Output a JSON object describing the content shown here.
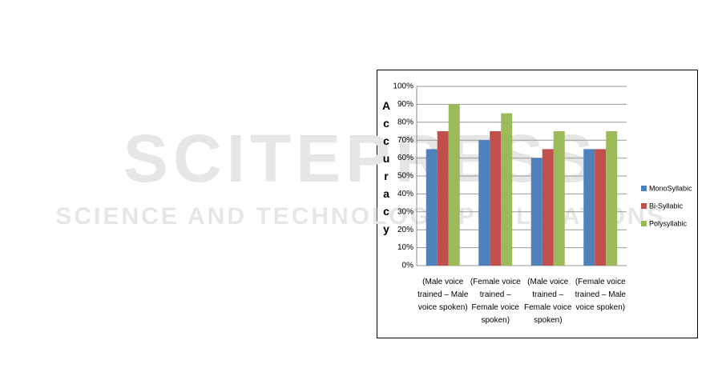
{
  "watermark": {
    "title": "SCITEPRESS",
    "subtitle": "SCIENCE AND TECHNOLOGY PUBLICATIONS"
  },
  "chart_data": {
    "type": "bar",
    "y_label": "Accuracy",
    "categories": [
      "(Male voice trained – Male voice spoken)",
      "(Female voice trained – Female voice spoken)",
      "(Male voice trained – Female voice spoken)",
      "(Female voice trained – Male voice spoken)"
    ],
    "series": [
      {
        "name": "MonoSyllabic",
        "color": "#4f81bd",
        "values": [
          65,
          70,
          60,
          65
        ]
      },
      {
        "name": "Bi-Syllabic",
        "color": "#c0504d",
        "values": [
          75,
          75,
          65,
          65
        ]
      },
      {
        "name": "Polysyllabic",
        "color": "#9bbb59",
        "values": [
          90,
          85,
          75,
          75
        ]
      }
    ],
    "ylim": [
      0,
      100
    ],
    "yticks": [
      {
        "value": 0,
        "label": "0%"
      },
      {
        "value": 10,
        "label": "10%"
      },
      {
        "value": 20,
        "label": "20%"
      },
      {
        "value": 30,
        "label": "30%"
      },
      {
        "value": 40,
        "label": "40%"
      },
      {
        "value": 50,
        "label": "50%"
      },
      {
        "value": 60,
        "label": "60%"
      },
      {
        "value": 70,
        "label": "70%"
      },
      {
        "value": 80,
        "label": "80%"
      },
      {
        "value": 90,
        "label": "90%"
      },
      {
        "value": 100,
        "label": "100%"
      }
    ],
    "grid": true,
    "legend": "right"
  }
}
